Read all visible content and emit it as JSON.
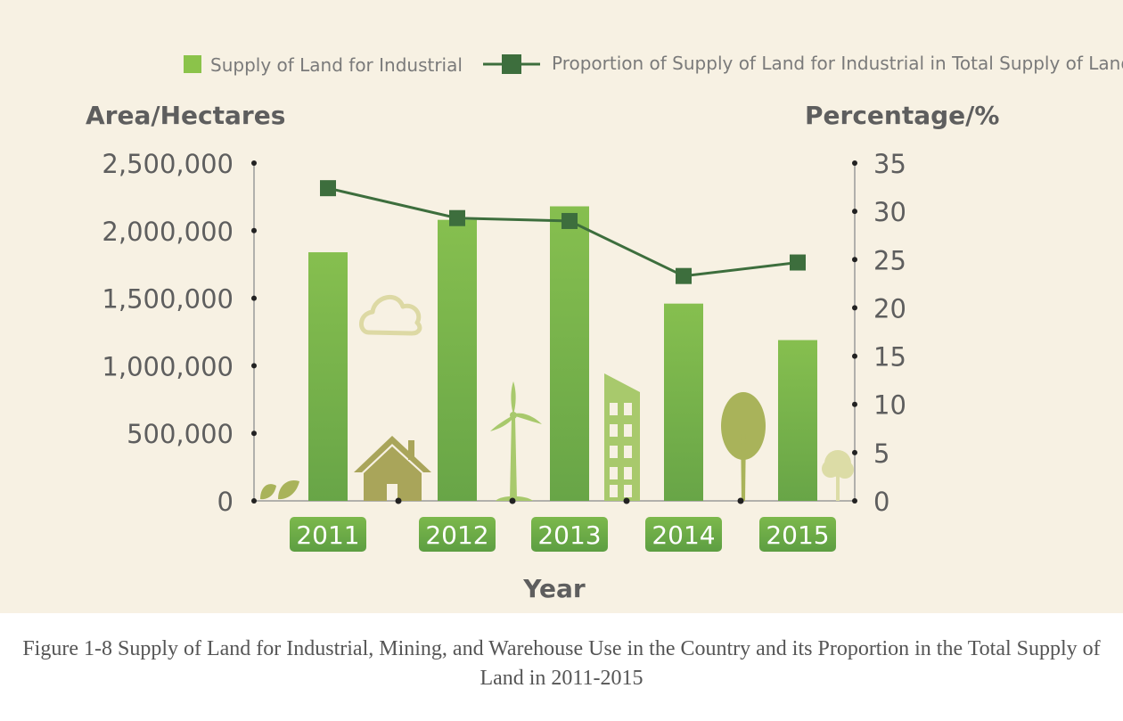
{
  "chart_data": {
    "type": "bar",
    "categories": [
      "2011",
      "2012",
      "2013",
      "2014",
      "2015"
    ],
    "series": [
      {
        "name": "Supply of Land for Industrial",
        "kind": "bar",
        "axis": "left",
        "color": "#7ab648",
        "values": [
          1840000,
          2080000,
          2180000,
          1460000,
          1190000
        ]
      },
      {
        "name": "Proportion of Supply of Land for Industrial in Total Supply of Land",
        "kind": "line",
        "axis": "right",
        "color": "#3d6e3d",
        "values": [
          32.4,
          29.3,
          29.0,
          23.3,
          24.7
        ]
      }
    ],
    "xlabel": "Year",
    "ylabel": "Area/Hectares",
    "y2label": "Percentage/%",
    "ylim": [
      0,
      2500000
    ],
    "y2lim": [
      0,
      35
    ],
    "yticks": [
      "0",
      "500,000",
      "1,000,000",
      "1,500,000",
      "2,000,000",
      "2,500,000"
    ],
    "y2ticks": [
      "0",
      "5",
      "10",
      "15",
      "20",
      "25",
      "30",
      "35"
    ],
    "legend_position": "top",
    "grid": false
  },
  "caption": "Figure 1-8 Supply of Land for Industrial, Mining, and Warehouse Use in the Country and its Proportion in the Total Supply of Land in 2011-2015",
  "colors": {
    "background": "#f7f1e3",
    "bar": "#7ab648",
    "line": "#3d6e3d",
    "text": "#5e5e5e",
    "decoration": "#a9b35a"
  },
  "decorations": [
    "leaf-icon",
    "cloud-icon",
    "house-icon",
    "wind-turbine-icon",
    "building-icon",
    "tree-icon",
    "small-tree-icon"
  ]
}
